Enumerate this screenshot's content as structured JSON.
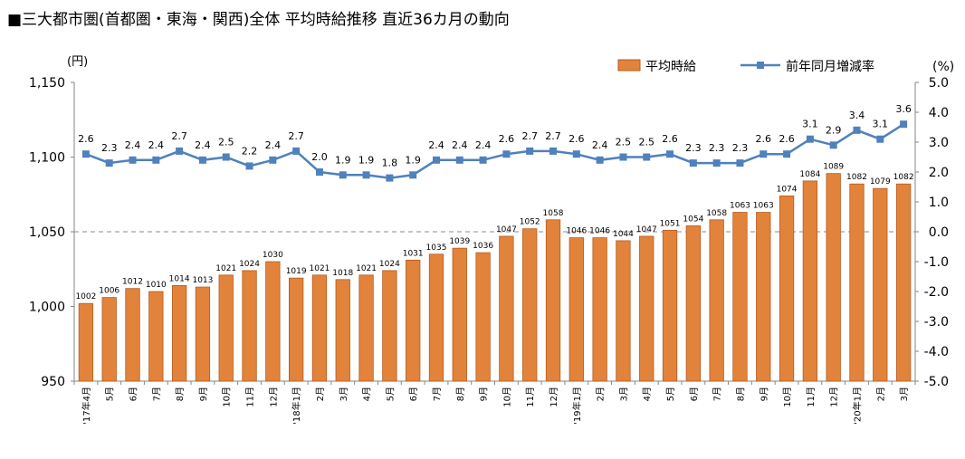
{
  "title": "■三大都市圏(首都圏・東海・関西)全体 平均時給推移 直近36カ月の動向",
  "chart_data": {
    "type": "bar+line",
    "categories": [
      "'17年4月",
      "5月",
      "6月",
      "7月",
      "8月",
      "9月",
      "10月",
      "11月",
      "12月",
      "'18年1月",
      "2月",
      "3月",
      "4月",
      "5月",
      "6月",
      "7月",
      "8月",
      "9月",
      "10月",
      "11月",
      "12月",
      "'19年1月",
      "2月",
      "3月",
      "4月",
      "5月",
      "6月",
      "7月",
      "8月",
      "9月",
      "10月",
      "11月",
      "12月",
      "'20年1月",
      "2月",
      "3月"
    ],
    "series": [
      {
        "name": "平均時給",
        "type": "bar",
        "axis": "left",
        "color": "#e2833c",
        "values": [
          1002,
          1006,
          1012,
          1010,
          1014,
          1013,
          1021,
          1024,
          1030,
          1019,
          1021,
          1018,
          1021,
          1024,
          1031,
          1035,
          1039,
          1036,
          1047,
          1052,
          1058,
          1046,
          1046,
          1044,
          1047,
          1051,
          1054,
          1058,
          1063,
          1063,
          1074,
          1084,
          1089,
          1082,
          1079,
          1082
        ]
      },
      {
        "name": "前年同月増減率",
        "type": "line",
        "axis": "right",
        "color": "#4f81bd",
        "values": [
          2.6,
          2.3,
          2.4,
          2.4,
          2.7,
          2.4,
          2.5,
          2.2,
          2.4,
          2.7,
          2.0,
          1.9,
          1.9,
          1.8,
          1.9,
          2.4,
          2.4,
          2.4,
          2.6,
          2.7,
          2.7,
          2.6,
          2.4,
          2.5,
          2.5,
          2.6,
          2.3,
          2.3,
          2.3,
          2.6,
          2.6,
          3.1,
          2.9,
          3.4,
          3.1,
          3.6
        ]
      }
    ],
    "left_axis": {
      "unit": "(円)",
      "range": [
        950,
        1150
      ],
      "ticks": [
        "950",
        "1,000",
        "1,050",
        "1,100",
        "1,150"
      ]
    },
    "right_axis": {
      "unit": "(%)",
      "range": [
        -5.0,
        5.0
      ],
      "ticks": [
        "-5.0",
        "-4.0",
        "-3.0",
        "-2.0",
        "-1.0",
        "0.0",
        "1.0",
        "2.0",
        "3.0",
        "4.0",
        "5.0"
      ]
    },
    "legend_position": "top-right",
    "zero_line": "dashed"
  }
}
